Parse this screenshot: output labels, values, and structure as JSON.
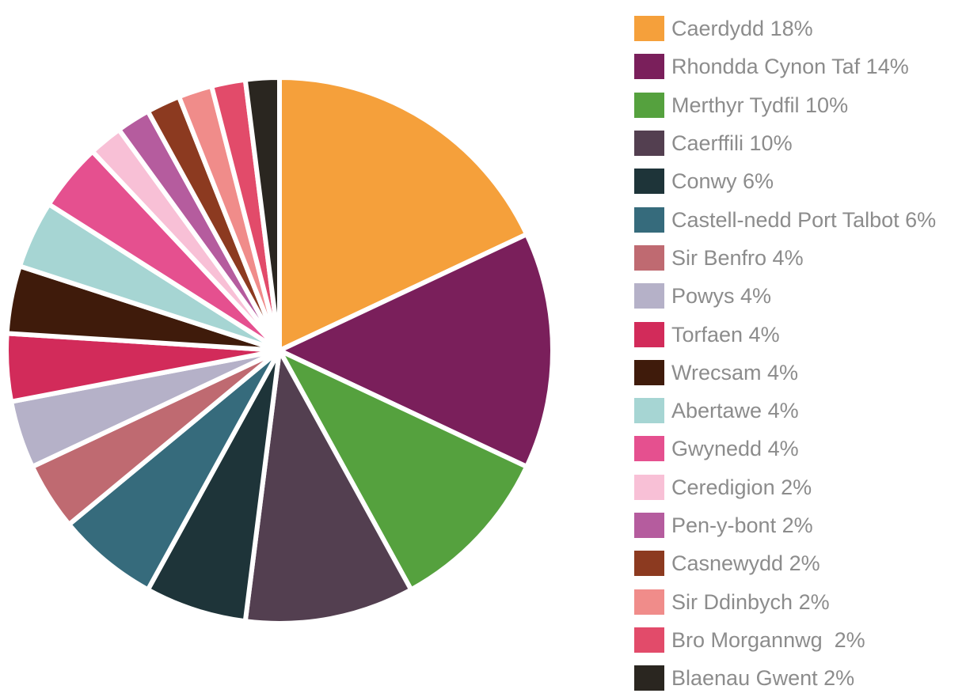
{
  "chart_data": {
    "type": "pie",
    "labels": [
      "Caerdydd 18%",
      "Rhondda Cynon Taf 14%",
      "Merthyr Tydfil 10%",
      "Caerffili 10%",
      "Conwy 6%",
      "Castell-nedd Port Talbot 6%",
      "Sir Benfro 4%",
      "Powys 4%",
      "Torfaen 4%",
      "Wrecsam 4%",
      "Abertawe 4%",
      "Gwynedd 4%",
      "Ceredigion 2%",
      "Pen-y-bont 2%",
      "Casnewydd 2%",
      "Sir Ddinbych 2%",
      "Bro Morgannwg  2%",
      "Blaenau Gwent 2%"
    ],
    "values": [
      18,
      14,
      10,
      10,
      6,
      6,
      4,
      4,
      4,
      4,
      4,
      4,
      2,
      2,
      2,
      2,
      2,
      2
    ],
    "colors": [
      "#f5a03b",
      "#7a1f5b",
      "#55a13e",
      "#533f50",
      "#1e3439",
      "#366b7c",
      "#bf6a71",
      "#b5b1c8",
      "#d22b5a",
      "#3f1b0b",
      "#a6d5d3",
      "#e5508f",
      "#f8c0d6",
      "#b55c9e",
      "#8c3a20",
      "#f08c8a",
      "#e24b6a",
      "#2a2620"
    ],
    "legend_position": "right"
  }
}
